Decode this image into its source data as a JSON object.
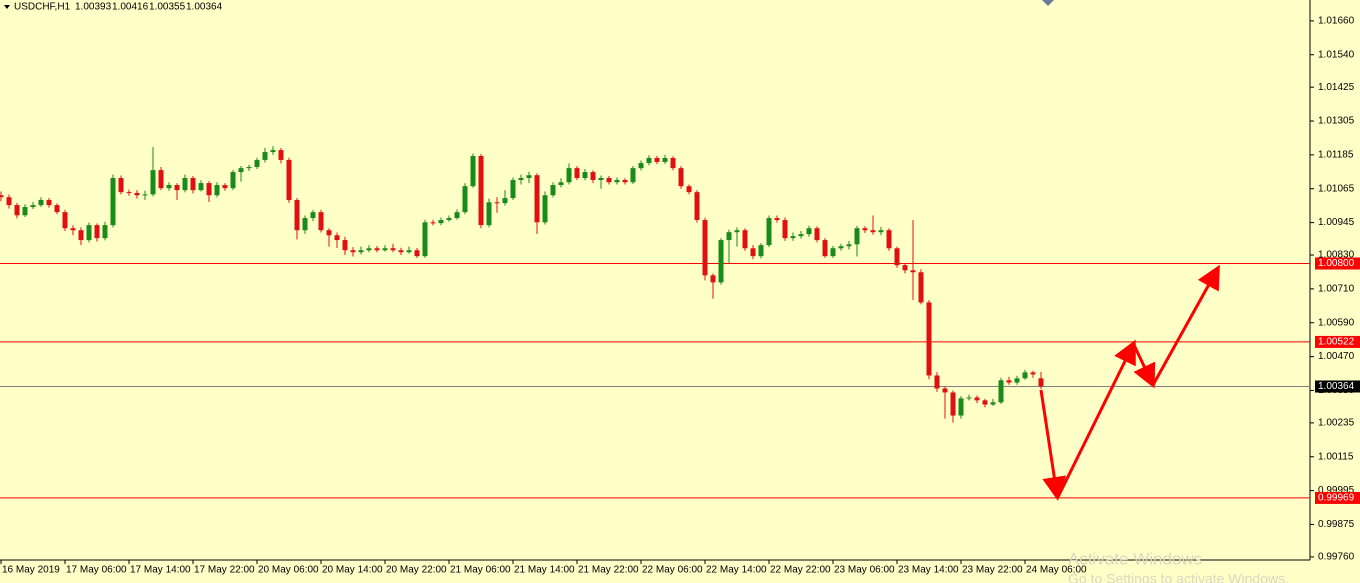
{
  "chart_data": {
    "type": "candlestick",
    "symbol": "USDCHF,H1",
    "background": "#ffffc8",
    "up_color": "#1a8a1a",
    "down_color": "#e01010",
    "ylim": [
      0.99749,
      1.01734
    ],
    "yticks": [
      {
        "value": 1.0166,
        "label": "1.01660"
      },
      {
        "value": 1.0154,
        "label": "1.01540"
      },
      1.01425,
      1.01305,
      1.01185,
      1.01065,
      1.00945,
      {
        "value": 1.0083,
        "label": "1.00830"
      },
      {
        "value": 1.0071,
        "label": "1.00710"
      },
      {
        "value": 1.0059,
        "label": "1.00590"
      },
      {
        "value": 1.0047,
        "label": "1.00470"
      },
      {
        "value": 1.0035,
        "label": "1.00350"
      },
      1.00235,
      1.00115,
      0.99995,
      0.99875,
      {
        "value": 0.9976,
        "label": "0.99760"
      }
    ],
    "categories": [
      "16 May 2019",
      null,
      null,
      null,
      null,
      null,
      null,
      null,
      "17 May 06:00",
      null,
      null,
      null,
      null,
      null,
      null,
      null,
      "17 May 14:00",
      null,
      null,
      null,
      null,
      null,
      null,
      null,
      "17 May 22:00",
      null,
      null,
      null,
      null,
      null,
      null,
      null,
      "20 May 06:00",
      null,
      null,
      null,
      null,
      null,
      null,
      null,
      "20 May 14:00",
      null,
      null,
      null,
      null,
      null,
      null,
      null,
      "20 May 22:00",
      null,
      null,
      null,
      null,
      null,
      null,
      null,
      "21 May 06:00",
      null,
      null,
      null,
      null,
      null,
      null,
      null,
      "21 May 14:00",
      null,
      null,
      null,
      null,
      null,
      null,
      null,
      "21 May 22:00",
      null,
      null,
      null,
      null,
      null,
      null,
      null,
      "22 May 06:00",
      null,
      null,
      null,
      null,
      null,
      null,
      null,
      "22 May 14:00",
      null,
      null,
      null,
      null,
      null,
      null,
      null,
      "22 May 22:00",
      null,
      null,
      null,
      null,
      null,
      null,
      null,
      "23 May 06:00",
      null,
      null,
      null,
      null,
      null,
      null,
      null,
      "23 May 14:00",
      null,
      null,
      null,
      null,
      null,
      null,
      null,
      "23 May 22:00",
      null,
      null,
      null,
      null,
      null,
      null,
      null,
      "24 May 06:00",
      null,
      null
    ],
    "open": [
      1.01042,
      1.01035,
      1.01007,
      1.00971,
      1.01,
      1.01007,
      1.01025,
      1.01007,
      1.00982,
      1.00925,
      1.00918,
      1.00883,
      1.00936,
      1.0089,
      1.00936,
      1.01103,
      1.01053,
      1.0105,
      1.01042,
      1.01045,
      1.01131,
      1.01067,
      1.01078,
      1.0106,
      1.01103,
      1.0106,
      1.01085,
      1.01042,
      1.01078,
      1.01067,
      1.01124,
      1.01138,
      1.01142,
      1.01167,
      1.01195,
      1.01202,
      1.01167,
      1.01025,
      1.00918,
      1.00961,
      1.00982,
      1.00918,
      1.009,
      1.00883,
      1.00847,
      1.0084,
      1.00847,
      1.00854,
      1.00847,
      1.00854,
      1.00847,
      1.0084,
      1.00847,
      1.00826,
      1.00946,
      1.00943,
      1.00954,
      1.00961,
      1.00982,
      1.01074,
      1.01181,
      1.00936,
      1.01017,
      1.01014,
      1.01032,
      1.01096,
      1.01103,
      1.01113,
      1.00946,
      1.01042,
      1.01078,
      1.01088,
      1.01138,
      1.01103,
      1.01124,
      1.01096,
      1.01103,
      1.01088,
      1.01096,
      1.01088,
      1.01138,
      1.01156,
      1.01174,
      1.0116,
      1.01174,
      1.01138,
      1.01074,
      1.01053,
      1.00954,
      1.00758,
      1.00733,
      1.00883,
      1.00911,
      1.00918,
      1.00854,
      1.00826,
      1.00865,
      1.00961,
      1.00954,
      1.0089,
      1.00897,
      1.00904,
      1.00925,
      1.00883,
      1.00826,
      1.00854,
      1.00861,
      1.00868,
      1.00925,
      1.00918,
      1.00911,
      1.00918,
      1.00854,
      1.00794,
      1.00776,
      1.00769,
      1.00662,
      1.00403,
      1.00357,
      1.00343,
      1.00261,
      1.00322,
      1.00325,
      1.00315,
      1.003,
      1.00308,
      1.00386,
      1.00378,
      1.00393,
      1.00414,
      1.00393
    ],
    "high": [
      1.01055,
      1.01045,
      1.01015,
      1.0101,
      1.01018,
      1.01035,
      1.01032,
      1.01013,
      1.0099,
      1.00935,
      1.00928,
      1.00945,
      1.00942,
      1.00948,
      1.01115,
      1.01112,
      1.01062,
      1.0106,
      1.01058,
      1.01213,
      1.01142,
      1.01088,
      1.01085,
      1.01115,
      1.0111,
      1.01095,
      1.01092,
      1.01088,
      1.01085,
      1.01132,
      1.01146,
      1.0115,
      1.01175,
      1.0121,
      1.01216,
      1.0121,
      1.01175,
      1.01032,
      1.0097,
      1.0099,
      1.0099,
      1.00925,
      1.0091,
      1.00895,
      1.00858,
      1.0086,
      1.00865,
      1.00862,
      1.00865,
      1.0087,
      1.00856,
      1.0086,
      1.00855,
      1.00955,
      1.00955,
      1.00963,
      1.0097,
      1.00992,
      1.01085,
      1.0119,
      1.01188,
      1.0103,
      1.01035,
      1.0106,
      1.01105,
      1.01115,
      1.01125,
      1.0112,
      1.01055,
      1.01088,
      1.01102,
      1.01155,
      1.01145,
      1.01135,
      1.0113,
      1.01112,
      1.0111,
      1.01105,
      1.01102,
      1.01145,
      1.01165,
      1.01184,
      1.01182,
      1.01185,
      1.0118,
      1.01145,
      1.0108,
      1.0106,
      1.00962,
      1.00765,
      1.0089,
      1.0092,
      1.00928,
      1.00925,
      1.00865,
      1.00872,
      1.0097,
      1.0097,
      1.00963,
      1.0091,
      1.00915,
      1.00934,
      1.00932,
      1.0089,
      1.00862,
      1.0087,
      1.0088,
      1.00934,
      1.00932,
      1.0097,
      1.0093,
      1.00925,
      1.0086,
      1.008,
      1.00954,
      1.0078,
      1.0067,
      1.00415,
      1.00365,
      1.0035,
      1.0033,
      1.00335,
      1.00332,
      1.0032,
      1.0032,
      1.00395,
      1.00398,
      1.00402,
      1.00423,
      1.0042,
      1.00416
    ],
    "low": [
      1.0102,
      1.00995,
      1.0096,
      1.00965,
      1.00993,
      1.01,
      1.00998,
      1.00975,
      1.00915,
      1.009,
      1.00865,
      1.00875,
      1.00878,
      1.00882,
      1.00928,
      1.01045,
      1.0104,
      1.0103,
      1.01025,
      1.01038,
      1.0106,
      1.01058,
      1.01025,
      1.01052,
      1.01048,
      1.01055,
      1.01018,
      1.01035,
      1.01058,
      1.0106,
      1.0109,
      1.01128,
      1.01135,
      1.01158,
      1.01185,
      1.01155,
      1.01015,
      1.00885,
      1.00905,
      1.0095,
      1.0091,
      1.0086,
      1.00855,
      1.0083,
      1.00825,
      1.00832,
      1.0084,
      1.0084,
      1.00842,
      1.0084,
      1.0083,
      1.00835,
      1.0082,
      1.0082,
      1.00935,
      1.00936,
      1.00948,
      1.00955,
      1.00975,
      1.01068,
      1.00925,
      1.00928,
      1.0098,
      1.01005,
      1.01025,
      1.0108,
      1.01085,
      1.00905,
      1.00938,
      1.01035,
      1.0107,
      1.0108,
      1.01095,
      1.01095,
      1.01085,
      1.01065,
      1.0108,
      1.0108,
      1.0108,
      1.01082,
      1.0113,
      1.01148,
      1.01152,
      1.01153,
      1.0113,
      1.01065,
      1.01045,
      1.00945,
      1.0074,
      1.00675,
      1.00725,
      1.008,
      1.0086,
      1.00845,
      1.00815,
      1.00818,
      1.00858,
      1.00945,
      1.0088,
      1.0088,
      1.00888,
      1.00895,
      1.00875,
      1.0082,
      1.0082,
      1.00845,
      1.0085,
      1.00825,
      1.00908,
      1.00902,
      1.009,
      1.00845,
      1.00785,
      1.00765,
      1.0067,
      1.00655,
      1.0039,
      1.00345,
      1.0025,
      1.00236,
      1.0025,
      1.00315,
      1.00305,
      1.0029,
      1.00295,
      1.00302,
      1.0037,
      1.0037,
      1.00388,
      1.00395,
      1.00355
    ],
    "close": [
      1.01035,
      1.01007,
      1.00971,
      1.01,
      1.01007,
      1.01025,
      1.01007,
      1.00982,
      1.00925,
      1.00918,
      1.00883,
      1.00936,
      1.0089,
      1.00936,
      1.01103,
      1.01053,
      1.0105,
      1.01042,
      1.01045,
      1.01131,
      1.01067,
      1.01078,
      1.0106,
      1.01103,
      1.0106,
      1.01085,
      1.01042,
      1.01078,
      1.01067,
      1.01124,
      1.01138,
      1.01142,
      1.01167,
      1.01195,
      1.01202,
      1.01167,
      1.01025,
      1.00918,
      1.00961,
      1.00982,
      1.00918,
      1.009,
      1.00883,
      1.00847,
      1.0084,
      1.00847,
      1.00854,
      1.00847,
      1.00854,
      1.00847,
      1.0084,
      1.00847,
      1.00826,
      1.00946,
      1.00943,
      1.00954,
      1.00961,
      1.00982,
      1.01074,
      1.01181,
      1.00936,
      1.01017,
      1.01014,
      1.01032,
      1.01096,
      1.01103,
      1.01113,
      1.00946,
      1.01042,
      1.01078,
      1.01088,
      1.01138,
      1.01103,
      1.01124,
      1.01096,
      1.01103,
      1.01088,
      1.01096,
      1.01088,
      1.01138,
      1.01156,
      1.01174,
      1.0116,
      1.01174,
      1.01138,
      1.01074,
      1.01053,
      1.00954,
      1.00758,
      1.00733,
      1.00883,
      1.00911,
      1.00918,
      1.00854,
      1.00826,
      1.00865,
      1.00961,
      1.00954,
      1.0089,
      1.00897,
      1.00904,
      1.00925,
      1.00883,
      1.00826,
      1.00854,
      1.00861,
      1.00868,
      1.00925,
      1.00918,
      1.00911,
      1.00918,
      1.00854,
      1.00794,
      1.00776,
      1.00769,
      1.00662,
      1.00403,
      1.00357,
      1.00343,
      1.00261,
      1.00322,
      1.00325,
      1.00315,
      1.003,
      1.00308,
      1.00386,
      1.00378,
      1.00393,
      1.00414,
      1.00407,
      1.00364
    ],
    "hlines": [
      {
        "value": 1.008,
        "label": "1.00800",
        "color": "#ff0000"
      },
      {
        "value": 1.00522,
        "label": "1.00522",
        "color": "#ff0000"
      },
      {
        "value": 1.00364,
        "label": "1.00364",
        "color": "#000000",
        "line_color": "#808080"
      },
      {
        "value": 0.99969,
        "label": "0.99969",
        "color": "#ff0000"
      }
    ],
    "watermark": [
      "Activate Windows",
      "Go to Settings to activate Windows."
    ]
  }
}
